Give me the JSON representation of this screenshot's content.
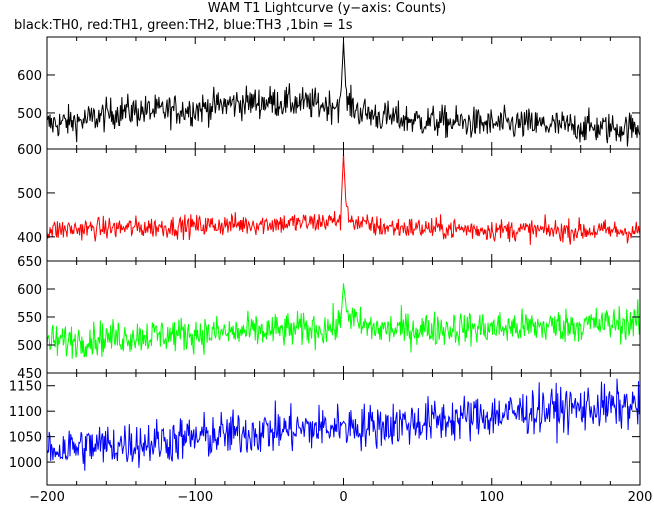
{
  "chart_data": {
    "type": "line",
    "title": "WAM T1 Lightcurve (y−axis: Counts)",
    "subtitle": "black:TH0, red:TH1, green:TH2, blue:TH3 ,1bin = 1s",
    "x_range": [
      -200,
      200
    ],
    "x_ticks": [
      -200,
      -100,
      0,
      100,
      200
    ],
    "grid": false,
    "panels": [
      {
        "series": "TH0",
        "color": "#000000",
        "ylim": [
          405,
          700
        ],
        "y_ticks": [
          500,
          600
        ],
        "x": [
          -200,
          -175,
          -150,
          -125,
          -100,
          -75,
          -50,
          -25,
          -10,
          -2,
          0,
          2,
          10,
          25,
          50,
          75,
          100,
          125,
          150,
          175,
          200
        ],
        "mean": [
          470,
          480,
          505,
          505,
          510,
          525,
          530,
          525,
          520,
          525,
          690,
          530,
          505,
          490,
          480,
          475,
          470,
          470,
          465,
          460,
          460
        ],
        "noise": 30
      },
      {
        "series": "TH1",
        "color": "#ff0000",
        "ylim": [
          345,
          600
        ],
        "y_ticks": [
          400,
          500,
          600
        ],
        "x": [
          -200,
          -175,
          -150,
          -125,
          -100,
          -75,
          -50,
          -25,
          -10,
          -2,
          0,
          2,
          10,
          25,
          50,
          75,
          100,
          125,
          150,
          175,
          200
        ],
        "mean": [
          415,
          418,
          420,
          422,
          425,
          428,
          430,
          432,
          435,
          440,
          590,
          450,
          430,
          422,
          420,
          418,
          416,
          415,
          414,
          414,
          412
        ],
        "noise": 18
      },
      {
        "series": "TH2",
        "color": "#00ff00",
        "ylim": [
          450,
          650
        ],
        "y_ticks": [
          450,
          500,
          550,
          600,
          650
        ],
        "x": [
          -200,
          -175,
          -150,
          -125,
          -100,
          -75,
          -50,
          -25,
          -10,
          -2,
          0,
          2,
          10,
          25,
          50,
          75,
          100,
          125,
          150,
          175,
          200
        ],
        "mean": [
          505,
          510,
          515,
          518,
          520,
          522,
          525,
          528,
          530,
          535,
          610,
          565,
          535,
          528,
          528,
          530,
          530,
          532,
          535,
          538,
          540
        ],
        "noise": 22
      },
      {
        "series": "TH3",
        "color": "#0000ff",
        "ylim": [
          955,
          1175
        ],
        "y_ticks": [
          1000,
          1050,
          1100,
          1150
        ],
        "x": [
          -200,
          -175,
          -150,
          -125,
          -100,
          -75,
          -50,
          -25,
          -10,
          -2,
          0,
          2,
          10,
          25,
          50,
          75,
          100,
          125,
          150,
          175,
          200
        ],
        "mean": [
          1025,
          1030,
          1035,
          1040,
          1048,
          1055,
          1062,
          1065,
          1068,
          1070,
          1080,
          1072,
          1070,
          1072,
          1078,
          1085,
          1092,
          1100,
          1105,
          1108,
          1110
        ],
        "noise": 32
      }
    ]
  }
}
